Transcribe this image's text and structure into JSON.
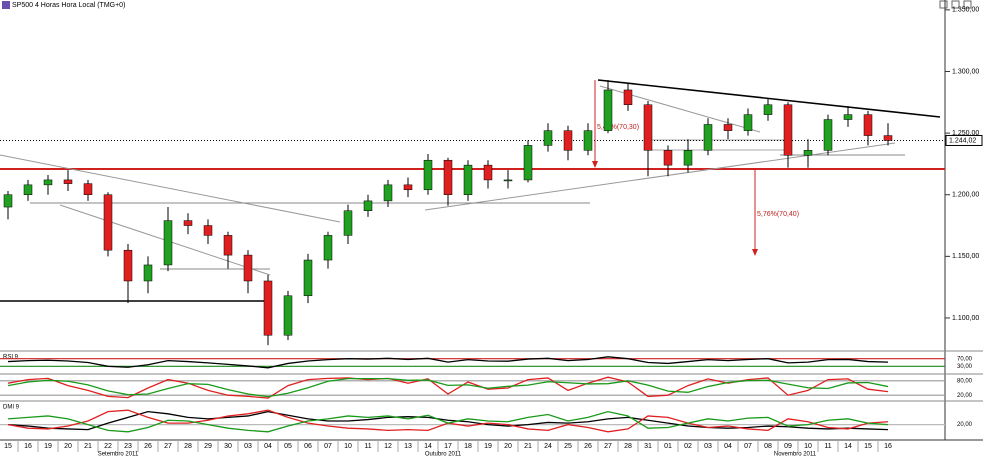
{
  "header": "SP500 4 Horas Hora Local (TMG+0)",
  "chart_data": [
    {
      "type": "candlestick",
      "categories": [
        "15",
        "16",
        "19",
        "20",
        "21",
        "22",
        "23",
        "26",
        "27",
        "28",
        "29",
        "30",
        "03",
        "04",
        "05",
        "06",
        "07",
        "10",
        "11",
        "12",
        "13",
        "14",
        "17",
        "18",
        "19",
        "20",
        "21",
        "24",
        "25",
        "26",
        "27",
        "28",
        "31",
        "01",
        "02",
        "03",
        "04",
        "07",
        "08",
        "09",
        "10",
        "11",
        "14",
        "15",
        "16"
      ],
      "month_labels": [
        "Setembro 2011",
        "Outubro 2011",
        "Novembro 2011"
      ],
      "open": [
        1190,
        1200,
        1208,
        1212,
        1209,
        1200,
        1155,
        1130,
        1143,
        1179,
        1175,
        1167,
        1151,
        1130,
        1086,
        1118,
        1147,
        1167,
        1187,
        1195,
        1208,
        1204,
        1228,
        1200,
        1224,
        1212,
        1212,
        1240,
        1252,
        1236,
        1252,
        1285,
        1273,
        1236,
        1224,
        1236,
        1257,
        1252,
        1265,
        1273,
        1232,
        1236,
        1261,
        1265,
        1248
      ],
      "high": [
        1203,
        1212,
        1216,
        1220,
        1212,
        1202,
        1160,
        1150,
        1190,
        1185,
        1180,
        1170,
        1155,
        1135,
        1122,
        1152,
        1170,
        1192,
        1200,
        1212,
        1214,
        1233,
        1230,
        1228,
        1228,
        1220,
        1244,
        1258,
        1256,
        1258,
        1293,
        1290,
        1276,
        1240,
        1245,
        1262,
        1262,
        1270,
        1278,
        1275,
        1245,
        1265,
        1272,
        1268,
        1258
      ],
      "low": [
        1180,
        1195,
        1200,
        1203,
        1195,
        1150,
        1112,
        1120,
        1138,
        1168,
        1160,
        1140,
        1120,
        1078,
        1082,
        1112,
        1140,
        1160,
        1182,
        1190,
        1198,
        1200,
        1191,
        1195,
        1205,
        1205,
        1210,
        1235,
        1228,
        1232,
        1250,
        1268,
        1215,
        1215,
        1218,
        1232,
        1245,
        1248,
        1260,
        1222,
        1222,
        1232,
        1255,
        1240,
        1240
      ],
      "close": [
        1200,
        1208,
        1212,
        1209,
        1200,
        1155,
        1130,
        1143,
        1179,
        1175,
        1167,
        1151,
        1130,
        1086,
        1118,
        1147,
        1167,
        1187,
        1195,
        1208,
        1204,
        1228,
        1200,
        1224,
        1212,
        1212,
        1240,
        1252,
        1236,
        1252,
        1285,
        1273,
        1236,
        1224,
        1236,
        1257,
        1252,
        1265,
        1273,
        1232,
        1236,
        1261,
        1265,
        1248,
        1244
      ],
      "up_color": "#22a022",
      "down_color": "#e02020",
      "ylim": [
        1074,
        1358
      ],
      "yticks": [
        {
          "value": 1100,
          "label": "1.100,00"
        },
        {
          "value": 1150,
          "label": "1.150,00"
        },
        {
          "value": 1200,
          "label": "1.200,00"
        },
        {
          "value": 1250,
          "label": "1.250,00"
        },
        {
          "value": 1300,
          "label": "1.300,00"
        },
        {
          "value": 1350,
          "label": "1.350,00"
        }
      ],
      "last_price": {
        "value": 1244.02,
        "label": "1.244,02"
      },
      "annotations": [
        "5,44%(70,30)",
        "5,76%(70,40)"
      ]
    },
    {
      "type": "line",
      "title": "RSI 9",
      "ylim": [
        0,
        100
      ],
      "yticks": [
        {
          "value": 30,
          "label": "30,00"
        },
        {
          "value": 70,
          "label": "70,00"
        }
      ],
      "level_colors": [
        "#1a8a1a",
        "#d02020"
      ],
      "series": [
        {
          "color": "#000000",
          "values": [
            55,
            60,
            62,
            58,
            50,
            30,
            25,
            38,
            60,
            55,
            48,
            40,
            32,
            22,
            45,
            58,
            65,
            70,
            68,
            72,
            66,
            72,
            52,
            65,
            58,
            57,
            68,
            72,
            60,
            66,
            80,
            70,
            50,
            45,
            55,
            65,
            60,
            66,
            70,
            48,
            52,
            65,
            66,
            55,
            52
          ]
        }
      ]
    },
    {
      "type": "line",
      "ylim": [
        0,
        100
      ],
      "yticks": [
        {
          "value": 20,
          "label": "20,00"
        },
        {
          "value": 80,
          "label": "80,00"
        }
      ],
      "level_colors": [
        "#999999",
        "#999999"
      ],
      "series": [
        {
          "color": "#e02020",
          "values": [
            70,
            85,
            90,
            60,
            40,
            15,
            10,
            50,
            85,
            70,
            40,
            20,
            15,
            8,
            60,
            85,
            90,
            92,
            85,
            90,
            70,
            88,
            25,
            75,
            45,
            50,
            85,
            92,
            40,
            70,
            95,
            75,
            15,
            20,
            60,
            88,
            70,
            85,
            92,
            20,
            40,
            85,
            88,
            45,
            35
          ]
        },
        {
          "color": "#1a9a1a",
          "values": [
            60,
            75,
            82,
            78,
            63,
            38,
            22,
            25,
            48,
            68,
            65,
            43,
            25,
            14,
            28,
            51,
            78,
            89,
            89,
            89,
            82,
            83,
            61,
            63,
            49,
            57,
            62,
            76,
            72,
            67,
            68,
            80,
            62,
            37,
            32,
            56,
            73,
            81,
            82,
            66,
            51,
            48,
            71,
            73,
            56
          ]
        }
      ]
    },
    {
      "type": "line",
      "title": "DMI 9",
      "ylim": [
        0,
        50
      ],
      "yticks": [
        {
          "value": 20,
          "label": "20,00"
        }
      ],
      "level_colors": [
        "#bbbbbb"
      ],
      "series": [
        {
          "color": "#000000",
          "values": [
            20,
            18,
            15,
            14,
            13,
            22,
            30,
            38,
            35,
            30,
            28,
            30,
            32,
            38,
            33,
            28,
            25,
            25,
            27,
            30,
            31,
            30,
            26,
            24,
            20,
            18,
            20,
            23,
            22,
            24,
            28,
            30,
            26,
            22,
            18,
            16,
            15,
            16,
            18,
            17,
            15,
            14,
            15,
            14,
            13
          ]
        },
        {
          "color": "#e02020",
          "values": [
            20,
            15,
            14,
            18,
            25,
            38,
            40,
            30,
            22,
            22,
            26,
            32,
            35,
            40,
            30,
            22,
            18,
            15,
            14,
            12,
            13,
            12,
            22,
            18,
            22,
            20,
            14,
            12,
            20,
            16,
            10,
            14,
            32,
            30,
            22,
            16,
            18,
            14,
            12,
            28,
            24,
            16,
            14,
            22,
            24
          ]
        },
        {
          "color": "#1a9a1a",
          "values": [
            28,
            30,
            32,
            28,
            20,
            12,
            10,
            16,
            26,
            25,
            20,
            15,
            12,
            10,
            18,
            25,
            28,
            32,
            30,
            32,
            28,
            33,
            22,
            28,
            25,
            24,
            30,
            34,
            25,
            30,
            38,
            32,
            15,
            16,
            22,
            28,
            25,
            29,
            30,
            18,
            20,
            26,
            28,
            22,
            20
          ]
        }
      ]
    }
  ]
}
